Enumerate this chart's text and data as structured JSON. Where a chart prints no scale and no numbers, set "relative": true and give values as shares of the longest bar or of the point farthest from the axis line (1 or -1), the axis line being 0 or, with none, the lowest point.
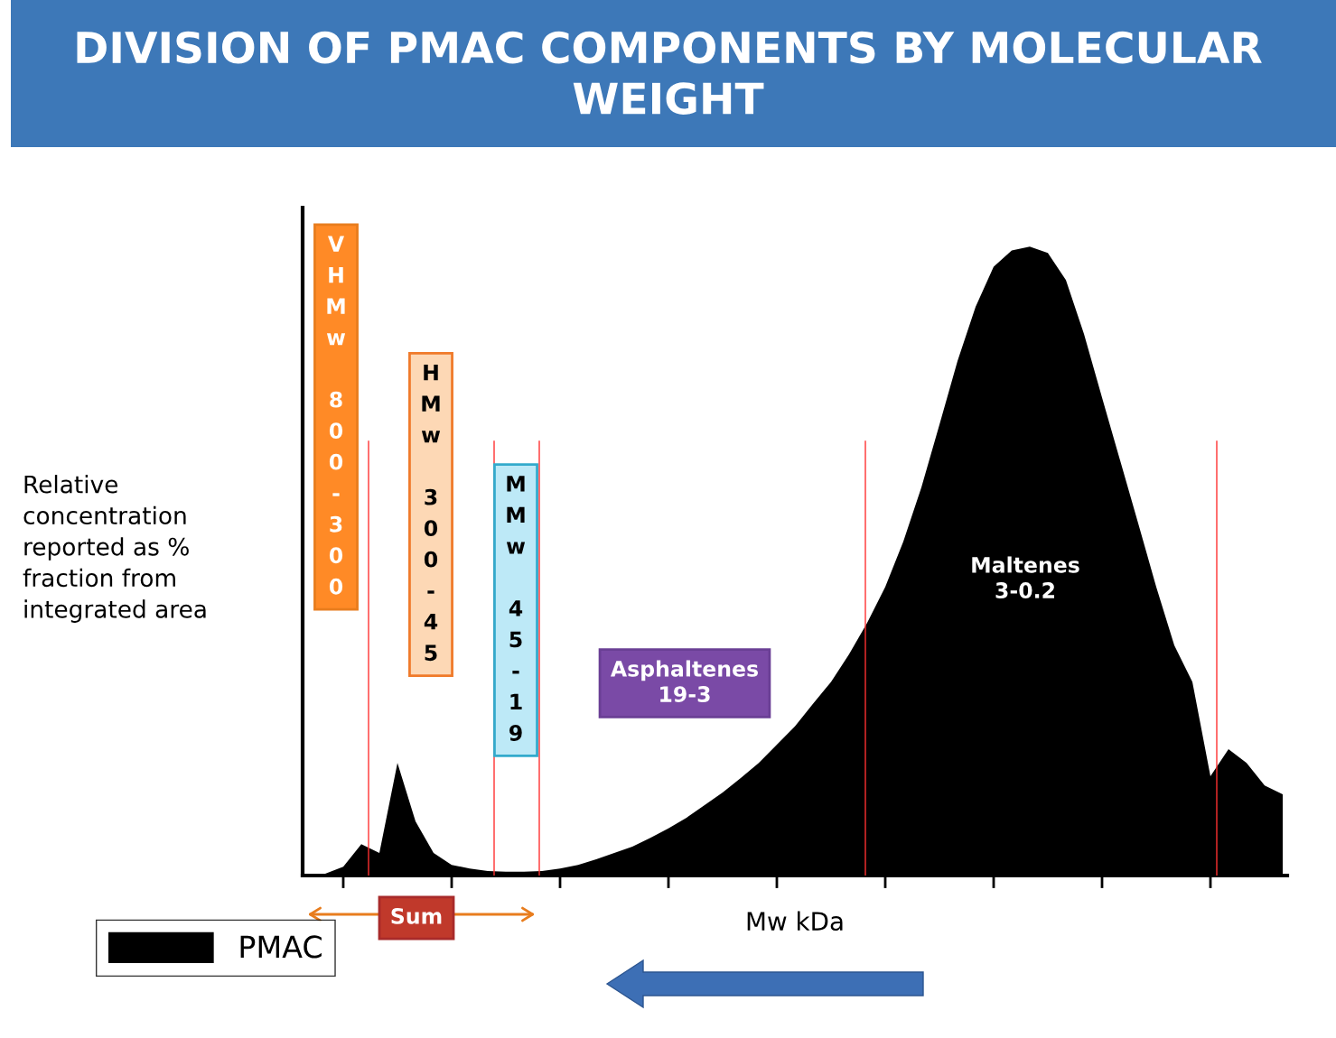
{
  "chart_data": {
    "type": "area",
    "relative": true,
    "title": "DIVISION OF PMAC COMPONENTS BY MOLECULAR WEIGHT",
    "ylabel": "Relative\nconcentration\nreported as %\nfraction from\nintegrated area",
    "xlabel": "Mw kDa",
    "legend": "bottom left",
    "grid": false,
    "categories": [
      null,
      null,
      null,
      null,
      null,
      null,
      null,
      null,
      null,
      null,
      null,
      null,
      null,
      null,
      null,
      null,
      null,
      null,
      null,
      null,
      null,
      null,
      null,
      null,
      null,
      null,
      null,
      null,
      null,
      null,
      null,
      null,
      null,
      null,
      null,
      null,
      null,
      null,
      null,
      null,
      null,
      null,
      null,
      null,
      null,
      null,
      null,
      null,
      null,
      null,
      null,
      null,
      null,
      null,
      null
    ],
    "series": [
      {
        "name": "PMAC",
        "color": "#000000",
        "values": [
          0,
          0.003,
          0.014,
          0.05,
          0.036,
          0.179,
          0.086,
          0.036,
          0.017,
          0.011,
          0.007,
          0.006,
          0.006,
          0.007,
          0.011,
          0.017,
          0.026,
          0.036,
          0.046,
          0.06,
          0.075,
          0.092,
          0.112,
          0.132,
          0.155,
          0.179,
          0.208,
          0.237,
          0.273,
          0.308,
          0.352,
          0.402,
          0.459,
          0.531,
          0.617,
          0.717,
          0.818,
          0.904,
          0.968,
          0.994,
          1,
          0.99,
          0.947,
          0.861,
          0.76,
          0.66,
          0.56,
          0.459,
          0.366,
          0.308,
          0.158,
          0.201,
          0.179,
          0.143,
          0.129
        ]
      }
    ],
    "annotations": [
      "VHMw 800-300",
      "HMw 300-45",
      "MMw 45-19",
      "Asphaltenes\n19-3",
      "Maltenes\n3-0.2",
      "Sum"
    ]
  }
}
